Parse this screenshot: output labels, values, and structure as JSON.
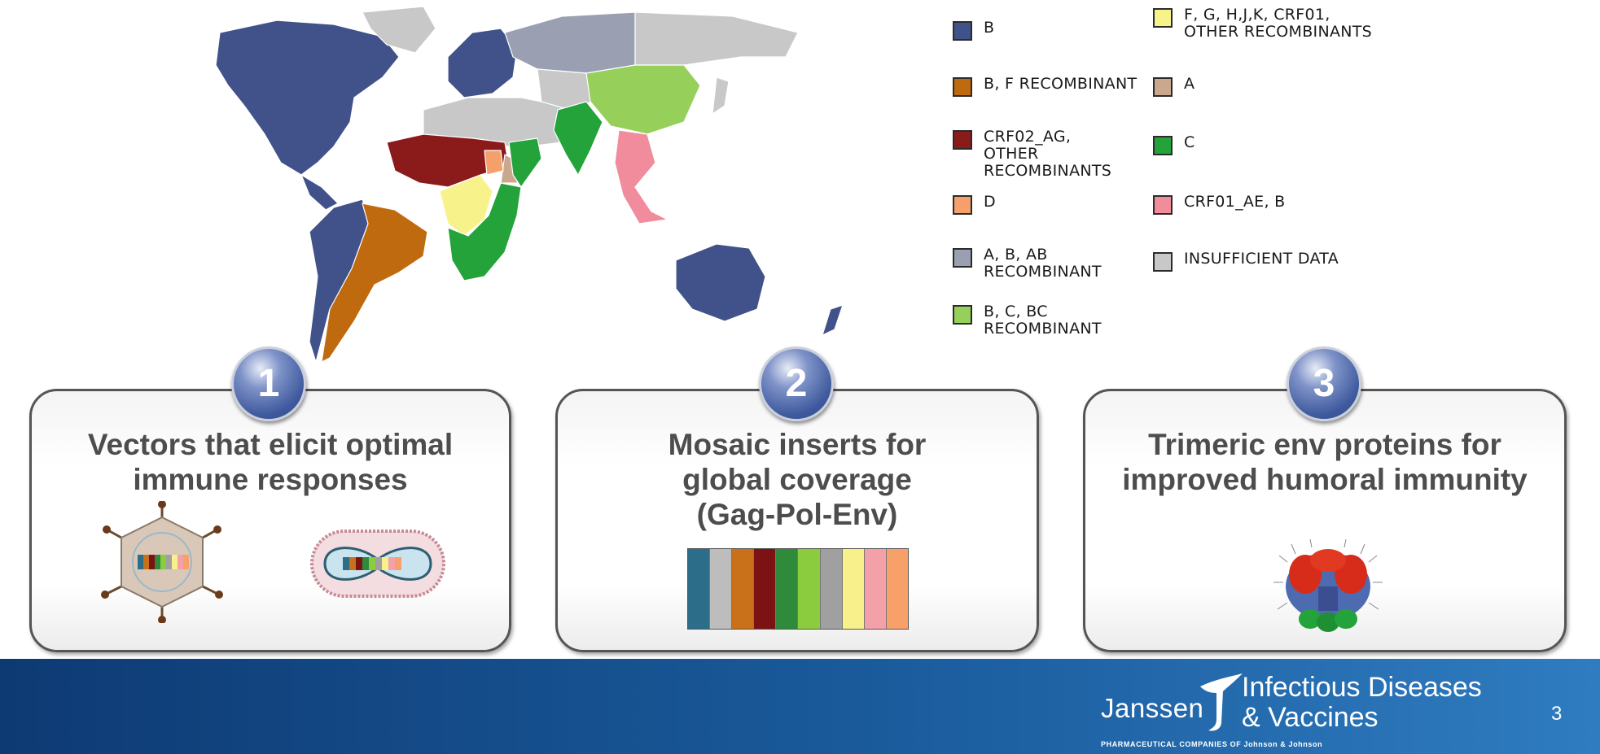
{
  "legend": [
    {
      "label": "B",
      "color": "#41528a"
    },
    {
      "label": "B, F RECOMBINANT",
      "color": "#c06a10"
    },
    {
      "label": "CRF02_AG, OTHER RECOMBINANTS",
      "color": "#8b1a1a"
    },
    {
      "label": "D",
      "color": "#f5a06a"
    },
    {
      "label": "A, B, AB RECOMBINANT",
      "color": "#9aa0b2"
    },
    {
      "label": "B, C, BC RECOMBINANT",
      "color": "#96d05a"
    },
    {
      "label": "F, G, H,J,K, CRF01, OTHER RECOMBINANTS",
      "color": "#f8f28a"
    },
    {
      "label": "A",
      "color": "#c9a88e"
    },
    {
      "label": "C",
      "color": "#23a33a"
    },
    {
      "label": "CRF01_AE, B",
      "color": "#f08c9c"
    },
    {
      "label": "INSUFFICIENT DATA",
      "color": "#c8c8c8"
    }
  ],
  "panels": [
    {
      "number": "1",
      "title_line1": "Vectors that elicit optimal",
      "title_line2": "immune responses"
    },
    {
      "number": "2",
      "title_line1": "Mosaic inserts for",
      "title_line2": "global coverage",
      "title_line3": "(Gag-Pol-Env)"
    },
    {
      "number": "3",
      "title_line1": "Trimeric env proteins for",
      "title_line2": "improved humoral immunity"
    }
  ],
  "mosaic_colors": [
    "#2c6e8a",
    "#bdbdbd",
    "#c9701a",
    "#7d1214",
    "#2f8a3c",
    "#8bcc3e",
    "#a0a0a0",
    "#f8f08a",
    "#f3a0a8",
    "#f7a06a"
  ],
  "footer": {
    "brand": "Janssen",
    "tagline_line1": "Infectious Diseases",
    "tagline_line2": "& Vaccines",
    "pharma": "PHARMACEUTICAL COMPANIES OF Johnson & Johnson",
    "page_number": "3"
  }
}
